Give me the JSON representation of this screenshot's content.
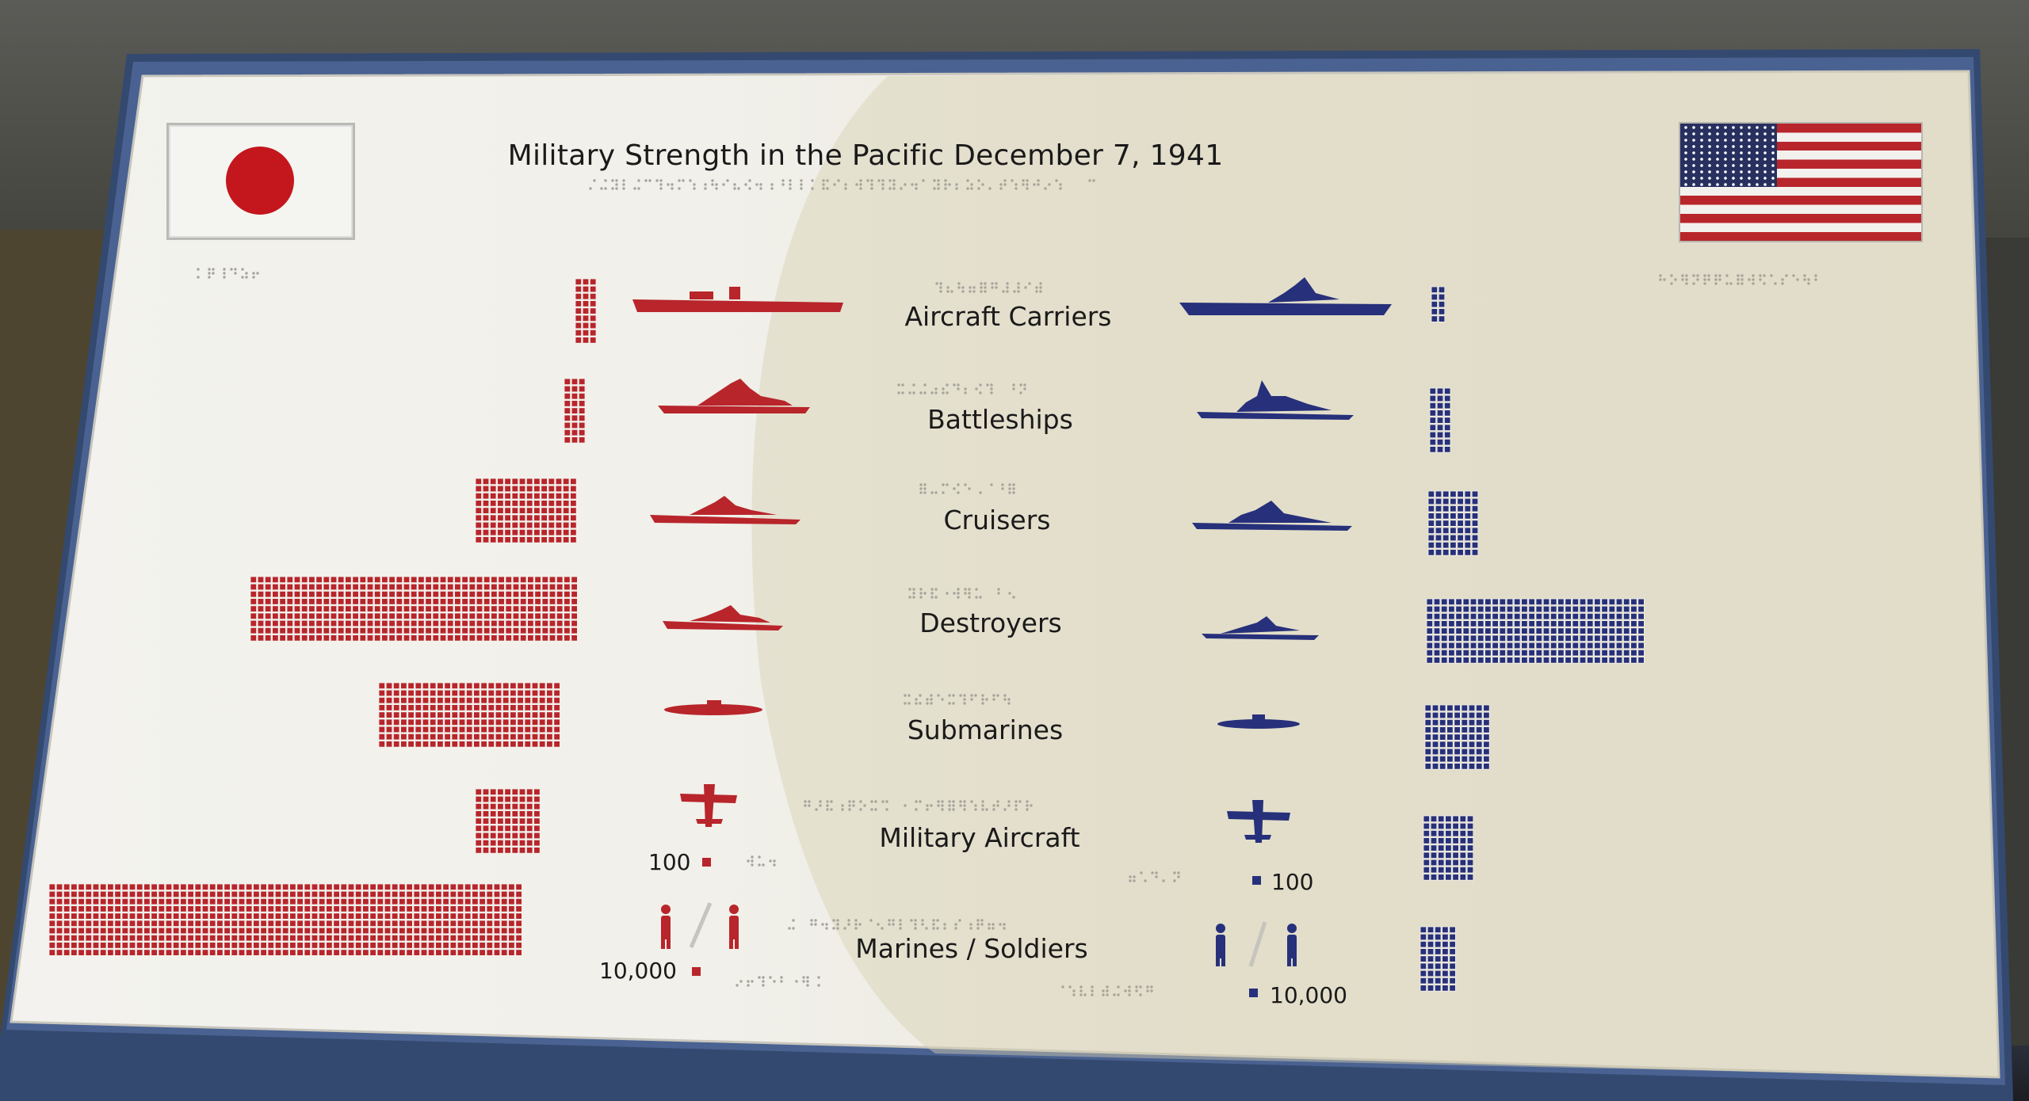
{
  "image": {
    "title": "Military Strength in the Pacific  December 7, 1941",
    "categories": [
      "Aircraft Carriers",
      "Battleships",
      "Cruisers",
      "Destroyers",
      "Submarines",
      "Military  Aircraft",
      "Marines / Soldiers"
    ],
    "scale_labels": {
      "aircraft_japan": "100",
      "aircraft_us": "100",
      "troops_japan": "10,000",
      "troops_us": "10,000"
    },
    "flags": [
      "japan-flag",
      "us-flag"
    ],
    "colors": {
      "japan": "#b8252b",
      "us": "#27307a",
      "plaque": "#f1efe8",
      "border": "#3d5584"
    }
  }
}
